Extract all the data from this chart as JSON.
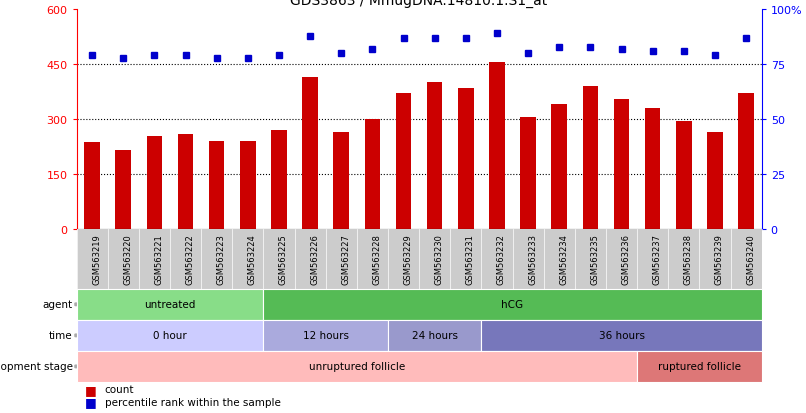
{
  "title": "GDS3863 / MmugDNA.14810.1.S1_at",
  "samples": [
    "GSM563219",
    "GSM563220",
    "GSM563221",
    "GSM563222",
    "GSM563223",
    "GSM563224",
    "GSM563225",
    "GSM563226",
    "GSM563227",
    "GSM563228",
    "GSM563229",
    "GSM563230",
    "GSM563231",
    "GSM563232",
    "GSM563233",
    "GSM563234",
    "GSM563235",
    "GSM563236",
    "GSM563237",
    "GSM563238",
    "GSM563239",
    "GSM563240"
  ],
  "counts": [
    238,
    215,
    255,
    260,
    240,
    240,
    270,
    415,
    265,
    300,
    370,
    400,
    385,
    455,
    305,
    340,
    390,
    355,
    330,
    295,
    265,
    370
  ],
  "percentiles": [
    79,
    78,
    79,
    79,
    78,
    78,
    79,
    88,
    80,
    82,
    87,
    87,
    87,
    89,
    80,
    83,
    83,
    82,
    81,
    81,
    79,
    87
  ],
  "bar_color": "#cc0000",
  "dot_color": "#0000cc",
  "ylim_left": [
    0,
    600
  ],
  "ylim_right": [
    0,
    100
  ],
  "yticks_left": [
    0,
    150,
    300,
    450,
    600
  ],
  "yticks_right": [
    0,
    25,
    50,
    75,
    100
  ],
  "yticklabels_right": [
    "0",
    "25",
    "50",
    "75",
    "100%"
  ],
  "agent_groups": [
    {
      "label": "untreated",
      "start": 0,
      "end": 6,
      "color": "#88dd88"
    },
    {
      "label": "hCG",
      "start": 6,
      "end": 22,
      "color": "#55bb55"
    }
  ],
  "time_groups": [
    {
      "label": "0 hour",
      "start": 0,
      "end": 6,
      "color": "#ccccff"
    },
    {
      "label": "12 hours",
      "start": 6,
      "end": 10,
      "color": "#aaaadd"
    },
    {
      "label": "24 hours",
      "start": 10,
      "end": 13,
      "color": "#9999cc"
    },
    {
      "label": "36 hours",
      "start": 13,
      "end": 22,
      "color": "#7777bb"
    }
  ],
  "dev_groups": [
    {
      "label": "unruptured follicle",
      "start": 0,
      "end": 18,
      "color": "#ffbbbb"
    },
    {
      "label": "ruptured follicle",
      "start": 18,
      "end": 22,
      "color": "#dd7777"
    }
  ],
  "legend_count_label": "count",
  "legend_pct_label": "percentile rank within the sample",
  "bg_color": "#ffffff",
  "plot_bg_color": "#ffffff",
  "xtick_bg_color": "#cccccc"
}
